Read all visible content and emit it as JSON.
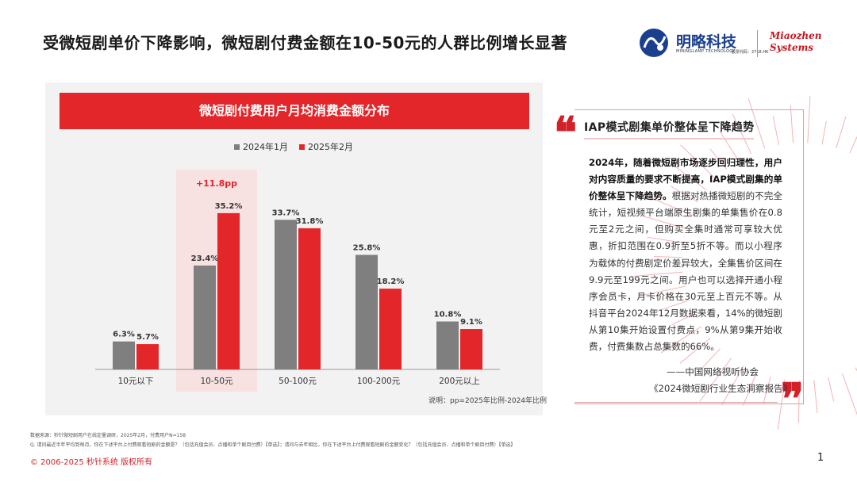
{
  "page": {
    "title": "受微短剧单价下降影响，微短剧付费金额在10-50元的人群比例增长显著",
    "page_number": "1",
    "copyright": "© 2006-2025 秒针系统 版权所有"
  },
  "logo": {
    "cn": "明略科技",
    "en": "MININGLAMP TECHNOLOGY",
    "sub": "股票代码：2718.HK",
    "partner_line1": "Miaozhen",
    "partner_line2": "Systems"
  },
  "chart_data": {
    "type": "bar",
    "title": "微短剧付费用户月均消费金额分布",
    "categories": [
      "10元以下",
      "10-50元",
      "50-100元",
      "100-200元",
      "200元以上"
    ],
    "series": [
      {
        "name": "2024年1月",
        "values": [
          6.3,
          23.4,
          33.7,
          25.8,
          10.8
        ],
        "labels": [
          "6.3%",
          "23.4%",
          "33.7%",
          "25.8%",
          "10.8%"
        ]
      },
      {
        "name": "2025年2月",
        "values": [
          5.7,
          35.2,
          31.8,
          18.2,
          9.1
        ],
        "labels": [
          "5.7%",
          "35.2%",
          "31.8%",
          "18.2%",
          "9.1%"
        ]
      }
    ],
    "ylim": [
      0,
      40
    ],
    "highlight_category": "10-50元",
    "annotation": "+11.8pp",
    "note": "说明：pp=2025年比例-2024年比例",
    "colors": {
      "2024年1月": "#7f7f7f",
      "2025年2月": "#e3262a"
    }
  },
  "quote": {
    "heading": "IAP模式剧集单价整体呈下降趋势",
    "bold_text": "2024年，随着微短剧市场逐步回归理性，用户对内容质量的要求不断提高，IAP模式剧集的单价整体呈下降趋势。",
    "body_text": "根据对热播微短剧的不完全统计，短视频平台端原生剧集的单集售价在0.8元至2元之间，但购买全集时通常可享较大优惠，折扣范围在0.9折至5折不等。而以小程序为载体的付费剧定价差异较大，全集售价区间在9.9元至199元之间。用户也可以选择开通小程序会员卡，月卡价格在30元至上百元不等。从抖音平台2024年12月数据来看，14%的微短剧从第10集开始设置付费点，9%从第9集开始收费，付费集数占总集数的66%。",
    "source": "——中国网络视听协会",
    "book": "《2024微短剧行业生态洞察报告》"
  },
  "footnotes": {
    "line1": "数据来源：秒针微短剧用户在线定量调研，2025年2月，付费用户N=158",
    "line2": "Q. 请问最近半年平均到每月，你在下述平台上付费观看短剧的金额是？（包括充值会员、点播和单个剧目付费）【单选】；请问与去年相比，你在下述平台上付费观看短剧的金额变化？（包括充值会员、点播和单个剧目付费）【单选】"
  },
  "colors": {
    "accent": "#e3262a",
    "gray": "#7f7f7f",
    "brand_blue": "#1b3f8f"
  }
}
